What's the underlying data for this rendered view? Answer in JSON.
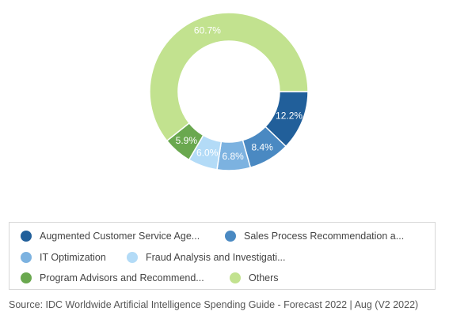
{
  "chart_data": {
    "type": "pie",
    "donut": true,
    "title": "",
    "slices": [
      {
        "label": "Augmented Customer Service Age...",
        "value": 12.2,
        "display": "12.2%",
        "color": "#215f9a"
      },
      {
        "label": "Sales Process Recommendation a...",
        "value": 8.4,
        "display": "8.4%",
        "color": "#4a89c2"
      },
      {
        "label": "IT Optimization",
        "value": 6.8,
        "display": "6.8%",
        "color": "#7cb2e0"
      },
      {
        "label": "Fraud Analysis and Investigati...",
        "value": 6.0,
        "display": "6.0%",
        "color": "#b3dbf7"
      },
      {
        "label": "Program Advisors and Recommend...",
        "value": 5.9,
        "display": "5.9%",
        "color": "#6aa84f"
      },
      {
        "label": "Others",
        "value": 60.7,
        "display": "60.7%",
        "color": "#c2e28f"
      }
    ],
    "legend_position": "bottom"
  },
  "source": "Source: IDC Worldwide Artificial Intelligence Spending Guide - Forecast 2022 | Aug (V2 2022)"
}
